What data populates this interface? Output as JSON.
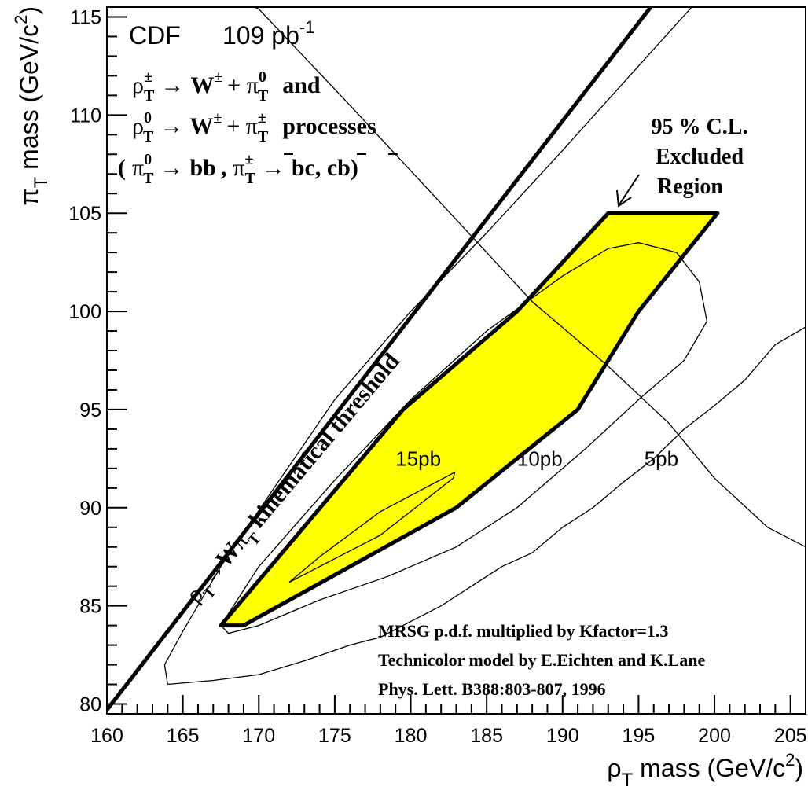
{
  "chart_data": {
    "type": "area",
    "title": "CDF",
    "luminosity": "109 pb",
    "luminosity_exp": "-1",
    "xlabel": {
      "base": "ρ",
      "sub": "T",
      "text": " mass (GeV/c",
      "sup": "2",
      "end": ")"
    },
    "ylabel": {
      "base": "π",
      "sub": "T",
      "text": " mass (GeV/c",
      "sup": "2",
      "end": ")"
    },
    "xlim": [
      160,
      206
    ],
    "ylim": [
      79.5,
      115.5
    ],
    "xticks": [
      160,
      165,
      170,
      175,
      180,
      185,
      190,
      195,
      200,
      205
    ],
    "yticks": [
      80,
      85,
      90,
      95,
      100,
      105,
      110,
      115
    ],
    "process_lines": [
      {
        "rho": "ρ",
        "rho_sub": "T",
        "rho_sup": "±",
        "arrow": "→",
        "w": "W",
        "w_sup": "±",
        "pi": "π",
        "pi_sub": "T",
        "pi_sup": "0",
        "tail": "and"
      },
      {
        "rho": "ρ",
        "rho_sub": "T",
        "rho_sup": "0",
        "arrow": "→",
        "w": "W",
        "w_sup": "±",
        "pi": "π",
        "pi_sub": "T",
        "pi_sup": "±",
        "tail": "processes"
      }
    ],
    "decay_line": {
      "open": "(",
      "pi0": "π",
      "pi0_sub": "T",
      "pi0_sup": "0",
      "arrow": "→",
      "bb": "bb",
      "comma": ",",
      "pipm": "π",
      "pipm_sub": "T",
      "pipm_sup": "±",
      "bc": "bc, cb)"
    },
    "excluded_region": {
      "label_lines": [
        "95 % C.L.",
        "Excluded",
        "Region"
      ],
      "fill": "#ffff00",
      "polygon": [
        [
          167.5,
          84
        ],
        [
          169,
          84
        ],
        [
          183,
          90
        ],
        [
          191,
          95
        ],
        [
          195,
          100
        ],
        [
          200.2,
          105
        ],
        [
          193,
          105
        ],
        [
          187,
          100
        ],
        [
          179.5,
          95
        ],
        [
          173.5,
          89.5
        ],
        [
          167.5,
          84
        ]
      ]
    },
    "threshold": {
      "label": {
        "rho": "ρ",
        "rho_sub": "T",
        "arrow": "→",
        "w": "W",
        "pi": "π",
        "pi_sub": "T",
        "text": " kinematical threshold"
      },
      "points": [
        [
          159.8,
          79.5
        ],
        [
          195.8,
          115.5
        ]
      ]
    },
    "contours": [
      {
        "label": "15pb",
        "label_at": [
          180.5,
          92.5
        ],
        "points": [
          [
            172,
            86.2
          ],
          [
            174,
            87.5
          ],
          [
            178,
            89.8
          ],
          [
            182.9,
            91.8
          ],
          [
            182.8,
            91.5
          ],
          [
            178,
            88.6
          ],
          [
            174,
            87
          ],
          [
            172,
            86.2
          ]
        ]
      },
      {
        "label": "10pb",
        "label_at": [
          188.5,
          92.5
        ],
        "points": [
          [
            167.5,
            84
          ],
          [
            170,
            87
          ],
          [
            175,
            91.4
          ],
          [
            180,
            95.5
          ],
          [
            185,
            99
          ],
          [
            190,
            101.8
          ],
          [
            193,
            103.2
          ],
          [
            195,
            103.5
          ],
          [
            197.5,
            103
          ],
          [
            199,
            101.5
          ],
          [
            199.5,
            99.5
          ],
          [
            198,
            97.5
          ],
          [
            195,
            95.5
          ],
          [
            191.5,
            93
          ],
          [
            187,
            90
          ],
          [
            183,
            88
          ],
          [
            178.5,
            86.5
          ],
          [
            174,
            85.3
          ],
          [
            170,
            84
          ],
          [
            168,
            83.6
          ],
          [
            167.5,
            84
          ]
        ]
      },
      {
        "label": "5pb",
        "label_at": [
          196.5,
          92.5
        ],
        "points": [
          [
            169.7,
            115.5
          ],
          [
            170,
            115.4
          ],
          [
            176,
            110.5
          ],
          [
            182,
            105.5
          ],
          [
            188,
            100.5
          ],
          [
            193,
            97.2
          ],
          [
            197,
            94.3
          ],
          [
            200,
            91.5
          ],
          [
            203.5,
            89
          ],
          [
            206,
            88
          ]
        ]
      },
      {
        "label": "",
        "label_at": null,
        "points": [
          [
            164,
            81
          ],
          [
            163.8,
            82
          ],
          [
            165,
            83.7
          ],
          [
            167.5,
            87
          ],
          [
            171,
            91
          ],
          [
            175,
            95.5
          ],
          [
            180,
            100
          ],
          [
            185,
            104
          ],
          [
            190,
            108.2
          ],
          [
            195,
            112.5
          ],
          [
            198.5,
            115.5
          ]
        ]
      },
      {
        "label": "",
        "label_at": null,
        "points": [
          [
            164,
            81
          ],
          [
            167,
            81.2
          ],
          [
            170,
            81.5
          ],
          [
            173,
            82.2
          ],
          [
            176,
            83
          ],
          [
            178,
            83.4
          ],
          [
            180,
            84.2
          ],
          [
            182,
            85
          ],
          [
            184,
            86
          ],
          [
            186,
            87
          ],
          [
            188,
            87.7
          ],
          [
            190,
            89
          ],
          [
            192,
            90
          ],
          [
            194,
            91.3
          ],
          [
            196,
            92.5
          ],
          [
            198,
            94
          ],
          [
            200,
            95.2
          ],
          [
            202,
            96.5
          ],
          [
            204,
            98.3
          ],
          [
            206,
            99.2
          ]
        ]
      }
    ],
    "footnote_lines": [
      "MRSG p.d.f.  multiplied by Kfactor=1.3",
      "Technicolor model by E.Eichten and K.Lane",
      "Phys. Lett. B388:803-807, 1996"
    ],
    "colors": {
      "fill": "#ffff00",
      "line": "#000000",
      "background": "#ffffff"
    }
  }
}
